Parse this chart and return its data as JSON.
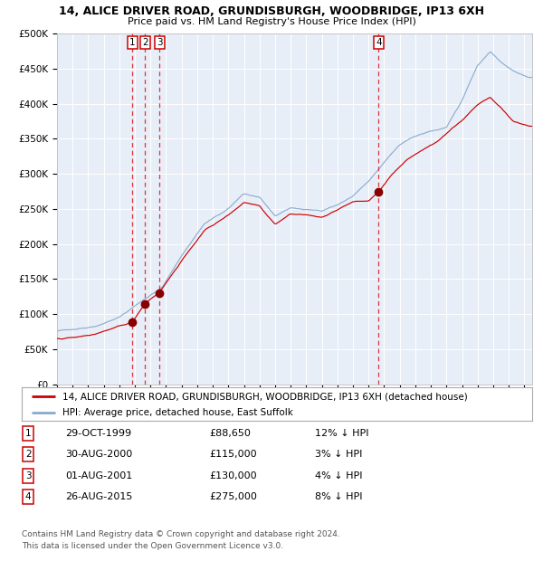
{
  "title": "14, ALICE DRIVER ROAD, GRUNDISBURGH, WOODBRIDGE, IP13 6XH",
  "subtitle": "Price paid vs. HM Land Registry's House Price Index (HPI)",
  "legend_house": "14, ALICE DRIVER ROAD, GRUNDISBURGH, WOODBRIDGE, IP13 6XH (detached house)",
  "legend_hpi": "HPI: Average price, detached house, East Suffolk",
  "footer1": "Contains HM Land Registry data © Crown copyright and database right 2024.",
  "footer2": "This data is licensed under the Open Government Licence v3.0.",
  "transaction_years": [
    1999.83,
    2000.66,
    2001.58,
    2015.65
  ],
  "transaction_prices": [
    88650,
    115000,
    130000,
    275000
  ],
  "transaction_labels": [
    "1",
    "2",
    "3",
    "4"
  ],
  "table_rows": [
    [
      "1",
      "29-OCT-1999",
      "£88,650",
      "12% ↓ HPI"
    ],
    [
      "2",
      "30-AUG-2000",
      "£115,000",
      "3% ↓ HPI"
    ],
    [
      "3",
      "01-AUG-2001",
      "£130,000",
      "4% ↓ HPI"
    ],
    [
      "4",
      "26-AUG-2015",
      "£275,000",
      "8% ↓ HPI"
    ]
  ],
  "yticks": [
    0,
    50000,
    100000,
    150000,
    200000,
    250000,
    300000,
    350000,
    400000,
    450000,
    500000
  ],
  "ytick_labels": [
    "£0",
    "£50K",
    "£100K",
    "£150K",
    "£200K",
    "£250K",
    "£300K",
    "£350K",
    "£400K",
    "£450K",
    "£500K"
  ],
  "ylim": [
    0,
    500000
  ],
  "xlim_start": 1995.0,
  "xlim_end": 2025.5,
  "house_color": "#cc0000",
  "hpi_color": "#88aacc",
  "fig_bg": "#f0f0f0",
  "plot_bg": "#e8eef8",
  "grid_color": "#d0d8e8",
  "dashed_color": "#dd2222",
  "marker_color": "#880000",
  "legend_border": "#aaaaaa",
  "box_edge_color": "#cc0000"
}
